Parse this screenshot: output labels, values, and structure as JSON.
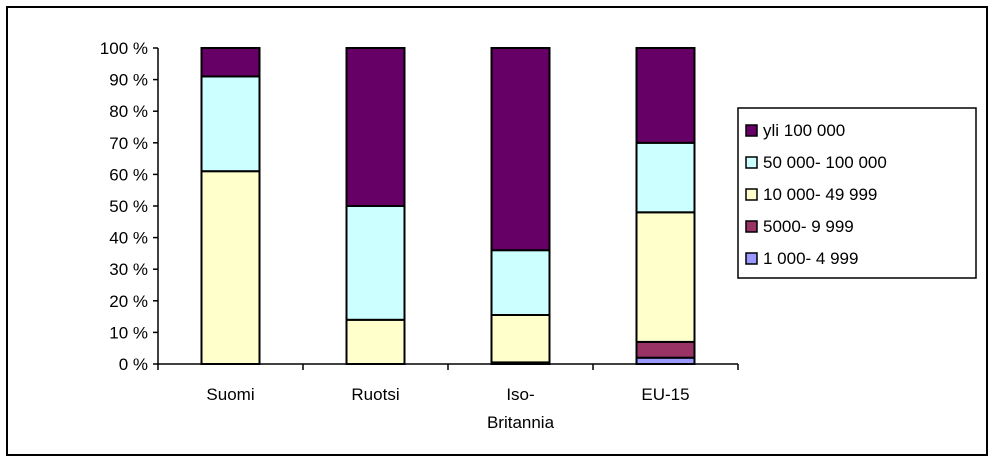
{
  "chart_data": {
    "type": "bar",
    "stacked": true,
    "percent_stacked": true,
    "categories": [
      "Suomi",
      "Ruotsi",
      "Iso-Britannia",
      "EU-15"
    ],
    "category_label_lines": [
      [
        "Suomi"
      ],
      [
        "Ruotsi"
      ],
      [
        "Iso-",
        "Britannia"
      ],
      [
        "EU-15"
      ]
    ],
    "series": [
      {
        "name": "1 000- 4 999",
        "color": "#9999FF",
        "values": [
          0,
          0,
          0.5,
          2
        ]
      },
      {
        "name": "5000- 9 999",
        "color": "#993366",
        "values": [
          0,
          0,
          0,
          5
        ]
      },
      {
        "name": "10 000- 49 999",
        "color": "#FFFFCC",
        "values": [
          61,
          14,
          15,
          41
        ]
      },
      {
        "name": "50 000- 100 000",
        "color": "#CCFFFF",
        "values": [
          30,
          36,
          20.5,
          22
        ]
      },
      {
        "name": "yli 100 000",
        "color": "#660066",
        "values": [
          9,
          50,
          64,
          30
        ]
      }
    ],
    "legend_order": [
      4,
      3,
      2,
      1,
      0
    ],
    "legend_position": "right",
    "ylim": [
      0,
      100
    ],
    "yticks": [
      "0 %",
      "10 %",
      "20 %",
      "30 %",
      "40 %",
      "50 %",
      "60 %",
      "70 %",
      "80 %",
      "90 %",
      "100 %"
    ],
    "grid": false,
    "title": "",
    "xlabel": "",
    "ylabel": ""
  }
}
